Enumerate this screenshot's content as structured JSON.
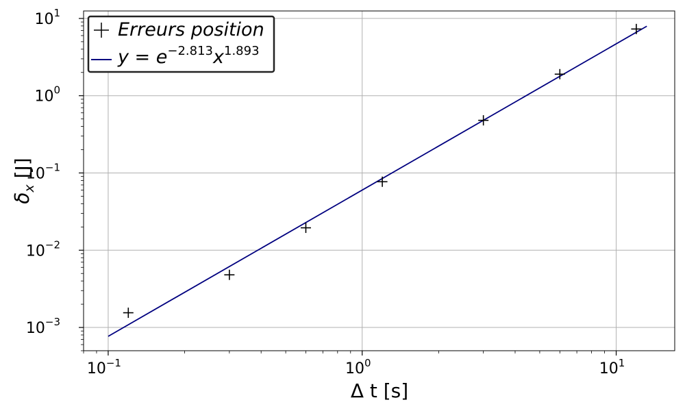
{
  "chart_data": {
    "type": "scatter",
    "xscale": "log",
    "yscale": "log",
    "xlim": [
      0.08,
      17
    ],
    "ylim": [
      0.0005,
      12.5
    ],
    "grid": true,
    "legend_position": "top-left",
    "xlabel": "Δ t [s]",
    "ylabel": "δ",
    "ylabel_subscript": "x",
    "ylabel_unit": " [J]",
    "x_ticks": [
      {
        "value": 0.1,
        "base": "10",
        "exp": "−1"
      },
      {
        "value": 1,
        "base": "10",
        "exp": "0"
      },
      {
        "value": 10,
        "base": "10",
        "exp": "1"
      }
    ],
    "y_ticks": [
      {
        "value": 0.001,
        "base": "10",
        "exp": "−3"
      },
      {
        "value": 0.01,
        "base": "10",
        "exp": "−2"
      },
      {
        "value": 0.1,
        "base": "10",
        "exp": "−1"
      },
      {
        "value": 1,
        "base": "10",
        "exp": "0"
      },
      {
        "value": 10,
        "base": "10",
        "exp": "1"
      }
    ],
    "series": [
      {
        "name": "Erreurs position",
        "kind": "scatter",
        "marker": "plus",
        "color": "#000000",
        "points": [
          {
            "x": 0.12,
            "y": 0.00155
          },
          {
            "x": 0.3,
            "y": 0.0048
          },
          {
            "x": 0.6,
            "y": 0.0195
          },
          {
            "x": 1.2,
            "y": 0.077
          },
          {
            "x": 3.0,
            "y": 0.48
          },
          {
            "x": 6.0,
            "y": 1.9
          },
          {
            "x": 12.0,
            "y": 7.3
          }
        ]
      },
      {
        "name_prefix": "y = e",
        "name_exp1": "−2.813",
        "name_mid": "x",
        "name_exp2": "1.893",
        "kind": "line",
        "color": "#00007f",
        "coef_ln": -2.813,
        "power": 1.893,
        "x_range": [
          0.1,
          13.2
        ]
      }
    ]
  }
}
